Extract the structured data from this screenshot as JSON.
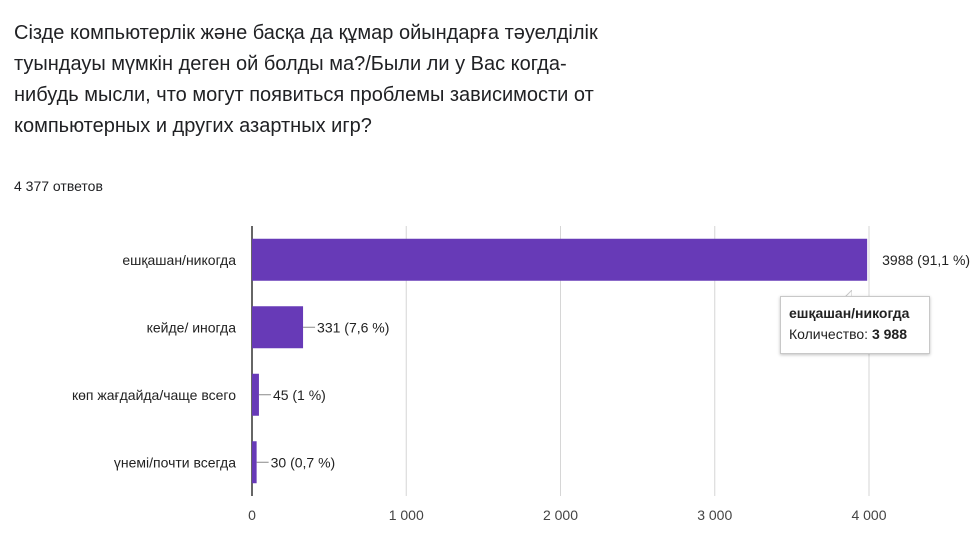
{
  "question": "Сізде компьютерлік  және басқа да құмар ойындарға тәуелділік\nтуындауы мүмкін деген ой болды ма?/Были ли у Вас когда-\nнибудь мысли, что могут появиться проблемы зависимости от\nкомпьютерных и других азартных  игр?",
  "responses_count": "4 377 ответов",
  "tooltip": {
    "title": "ешқашан/никогда",
    "label": "Количество: ",
    "value": "3 988"
  },
  "colors": {
    "bar": "#673ab7",
    "grid": "#d6d6d6",
    "axis": "#333333"
  },
  "chart_data": {
    "type": "bar",
    "orientation": "horizontal",
    "categories": [
      "ешқашан/никогда",
      "кейде/ иногда",
      "көп жағдайда/чаще всего",
      "үнемі/почти всегда"
    ],
    "values": [
      3988,
      331,
      45,
      30
    ],
    "data_labels": [
      "3988 (91,1 %)",
      "331 (7,6 %)",
      "45 (1 %)",
      "30 (0,7 %)"
    ],
    "xlim": [
      0,
      4000
    ],
    "xticks": [
      0,
      1000,
      2000,
      3000,
      4000
    ],
    "xtick_labels": [
      "0",
      "1 000",
      "2 000",
      "3 000",
      "4 000"
    ],
    "grid": true
  }
}
